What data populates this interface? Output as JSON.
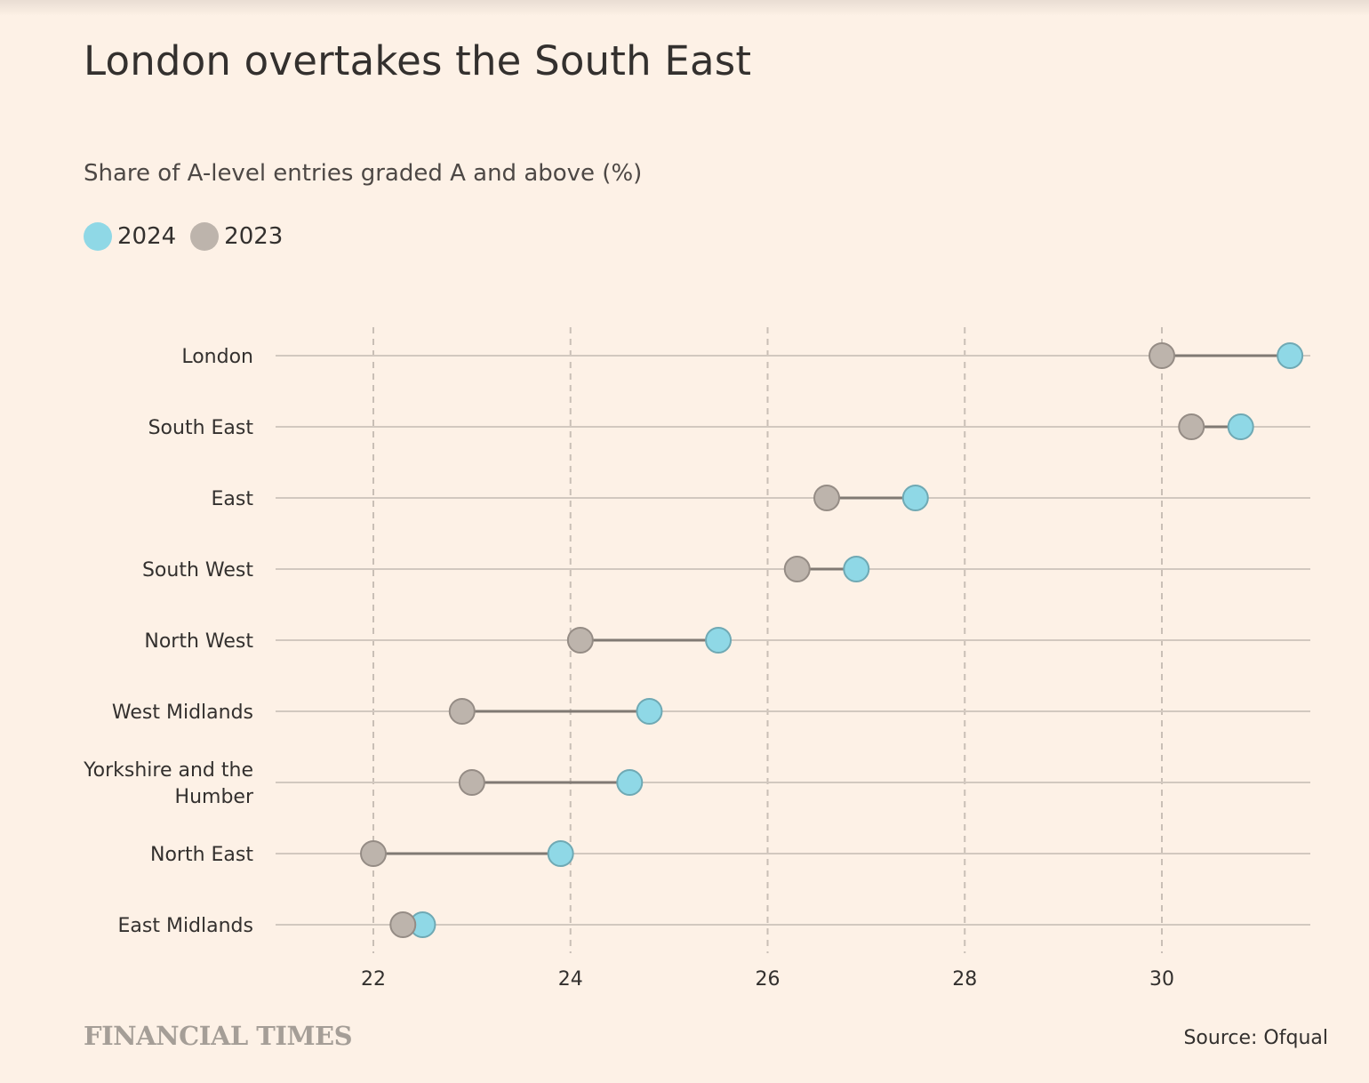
{
  "title": "London overtakes the South East",
  "subtitle": "Share of A-level entries graded A and above (%)",
  "legend": [
    {
      "label": "2024",
      "color": "#8fd8e6"
    },
    {
      "label": "2023",
      "color": "#bdb4ac"
    }
  ],
  "footer": {
    "logo": "FINANCIAL TIMES",
    "source": "Source: Ofqual"
  },
  "chart_data": {
    "type": "dot-plot",
    "title": "London overtakes the South East",
    "subtitle": "Share of A-level entries graded A and above (%)",
    "xlabel": "",
    "ylabel": "",
    "xlim": [
      21.0,
      31.5
    ],
    "xticks": [
      "22",
      "24",
      "26",
      "28",
      "30"
    ],
    "grid": "vertical dashed at ticks",
    "legend_position": "top-left",
    "categories": [
      [
        "London"
      ],
      [
        "South East"
      ],
      [
        "East"
      ],
      [
        "South West"
      ],
      [
        "North West"
      ],
      [
        "West Midlands"
      ],
      [
        "Yorkshire and the",
        "Humber"
      ],
      [
        "North East"
      ],
      [
        "East Midlands"
      ]
    ],
    "series": [
      {
        "name": "2023",
        "color": "#bdb4ac",
        "values": [
          30.0,
          30.3,
          26.6,
          26.3,
          24.1,
          22.9,
          23.0,
          22.0,
          22.3
        ]
      },
      {
        "name": "2024",
        "color": "#8fd8e6",
        "values": [
          31.3,
          30.8,
          27.5,
          26.9,
          25.5,
          24.8,
          24.6,
          23.9,
          22.5
        ]
      }
    ]
  }
}
